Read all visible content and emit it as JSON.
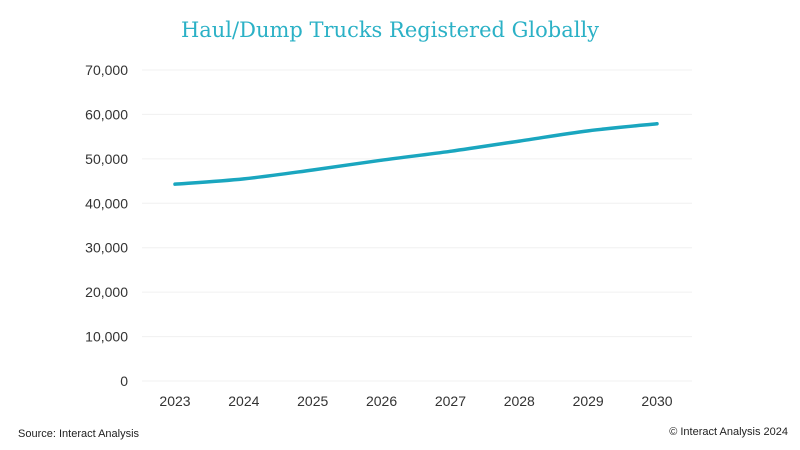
{
  "chart_data": {
    "type": "line",
    "title": "Haul/Dump Trucks Registered Globally",
    "x": [
      "2023",
      "2024",
      "2025",
      "2026",
      "2027",
      "2028",
      "2029",
      "2030"
    ],
    "series": [
      {
        "values": [
          44300,
          45500,
          47500,
          49700,
          51700,
          54000,
          56300,
          57900
        ],
        "color": "#1aa6bf"
      }
    ],
    "ylim": [
      0,
      70000
    ],
    "yticks": [
      0,
      10000,
      20000,
      30000,
      40000,
      50000,
      60000,
      70000
    ],
    "ytick_labels": [
      "0",
      "10,000",
      "20,000",
      "30,000",
      "40,000",
      "50,000",
      "60,000",
      "70,000"
    ],
    "grid": true
  },
  "footer": {
    "source": "Source: Interact Analysis",
    "copyright": "© Interact Analysis 2024"
  },
  "colors": {
    "title": "#2bb1c6",
    "line": "#1aa6bf"
  }
}
